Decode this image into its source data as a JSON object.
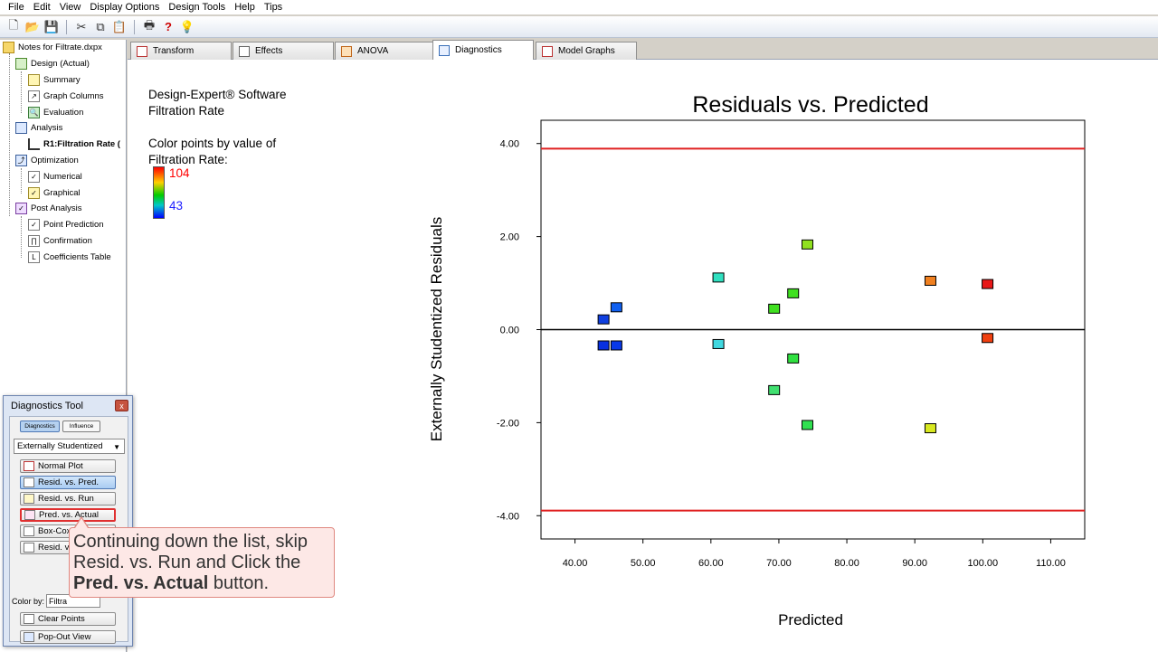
{
  "menu": [
    "File",
    "Edit",
    "View",
    "Display Options",
    "Design Tools",
    "Help",
    "Tips"
  ],
  "toolbar_icons": [
    "new-file-icon",
    "open-folder-icon",
    "save-icon",
    "cut-icon",
    "copy-icon",
    "paste-icon",
    "print-icon",
    "help-icon",
    "tip-bulb-icon"
  ],
  "tree": {
    "root": "Notes for Filtrate.dxpx",
    "design": "Design (Actual)",
    "summary": "Summary",
    "graph_columns": "Graph Columns",
    "evaluation": "Evaluation",
    "analysis": "Analysis",
    "r1": "R1:Filtration Rate (",
    "optimization": "Optimization",
    "numerical": "Numerical",
    "graphical": "Graphical",
    "post_analysis": "Post Analysis",
    "point_prediction": "Point Prediction",
    "confirmation": "Confirmation",
    "coefficients_table": "Coefficients Table"
  },
  "tabs": [
    "Transform",
    "Effects",
    "ANOVA",
    "Diagnostics",
    "Model Graphs"
  ],
  "info": {
    "software": "Design-Expert® Software",
    "response": "Filtration Rate",
    "color_label_1": "Color points by value of",
    "color_label_2": "Filtration Rate:",
    "legend_high": "104",
    "legend_low": "43"
  },
  "dialog": {
    "title": "Diagnostics Tool",
    "close": "x",
    "tab_diagnostics": "Diagnostics",
    "tab_influence": "Influence",
    "dropdown": "Externally Studentized",
    "buttons": [
      "Normal Plot",
      "Resid. vs. Pred.",
      "Resid. vs. Run",
      "Pred. vs. Actual",
      "Box-Cox",
      "Resid. v"
    ],
    "color_by_label": "Color by:",
    "color_by_value": "Filtra",
    "clear_points": "Clear Points",
    "popout": "Pop-Out View"
  },
  "callout": {
    "line1": "Continuing down the list, skip",
    "line2": "Resid. vs. Run and Click the",
    "bold": "Pred. vs. Actual",
    "tail": " button."
  },
  "colors": {
    "limit_line": "#e02020",
    "zero_line": "#000000",
    "callout_border": "#e08880"
  },
  "chart_data": {
    "type": "scatter",
    "title": "Residuals vs. Predicted",
    "xlabel": "Predicted",
    "ylabel": "Externally Studentized Residuals",
    "xlim": [
      35,
      115
    ],
    "ylim": [
      -4.5,
      4.5
    ],
    "x_ticks": [
      "40.00",
      "50.00",
      "60.00",
      "70.00",
      "80.00",
      "90.00",
      "100.00",
      "110.00"
    ],
    "y_ticks": [
      "4.00",
      "2.00",
      "0.00",
      "-2.00",
      "-4.00"
    ],
    "limit_lines": [
      3.89,
      -3.89
    ],
    "zero_line": 0,
    "points": [
      {
        "x": 44.2,
        "y": 0.22,
        "color": "#1040e0"
      },
      {
        "x": 46.1,
        "y": 0.48,
        "color": "#1060f0"
      },
      {
        "x": 44.2,
        "y": -0.34,
        "color": "#0830e0"
      },
      {
        "x": 46.1,
        "y": -0.34,
        "color": "#0838e8"
      },
      {
        "x": 61.1,
        "y": 1.12,
        "color": "#30e0c0"
      },
      {
        "x": 61.1,
        "y": -0.31,
        "color": "#40d8e0"
      },
      {
        "x": 69.3,
        "y": 0.45,
        "color": "#40e020"
      },
      {
        "x": 69.3,
        "y": -1.3,
        "color": "#40e070"
      },
      {
        "x": 72.1,
        "y": 0.78,
        "color": "#40e020"
      },
      {
        "x": 72.1,
        "y": -0.62,
        "color": "#30e040"
      },
      {
        "x": 74.2,
        "y": 1.83,
        "color": "#90e020"
      },
      {
        "x": 74.2,
        "y": -2.05,
        "color": "#30e050"
      },
      {
        "x": 92.3,
        "y": 1.05,
        "color": "#f08020"
      },
      {
        "x": 92.3,
        "y": -2.12,
        "color": "#d8e820"
      },
      {
        "x": 100.7,
        "y": 0.98,
        "color": "#e81818"
      },
      {
        "x": 100.7,
        "y": -0.18,
        "color": "#f04010"
      }
    ]
  }
}
